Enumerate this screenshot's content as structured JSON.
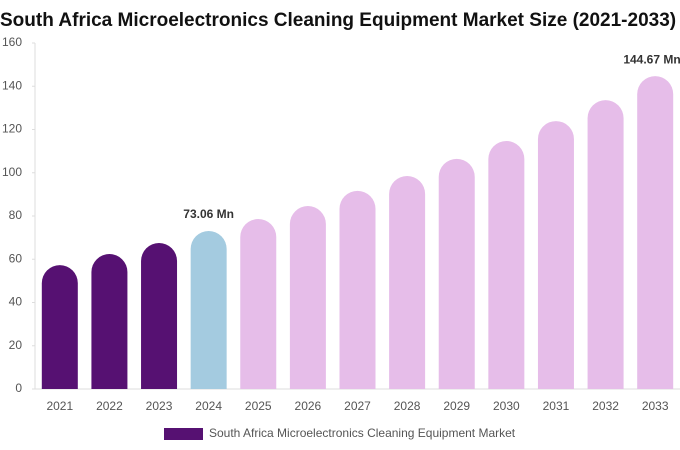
{
  "chart_data": {
    "type": "bar",
    "title": "South Africa Microelectronics Cleaning Equipment Market Size (2021-2033)",
    "categories": [
      "2021",
      "2022",
      "2023",
      "2024",
      "2025",
      "2026",
      "2027",
      "2028",
      "2029",
      "2030",
      "2031",
      "2032",
      "2033"
    ],
    "series": [
      {
        "name": "South Africa Microelectronics Cleaning Equipment Market",
        "color": "#561172",
        "values": [
          57.3,
          62.4,
          67.5,
          73.06,
          78.6,
          84.6,
          91.6,
          98.5,
          106.4,
          114.7,
          123.9,
          133.6,
          144.67
        ],
        "value_labels": [
          null,
          null,
          null,
          "73.06 Mn",
          null,
          null,
          null,
          null,
          null,
          null,
          null,
          null,
          "144.67 Mn"
        ],
        "colors": [
          "#561172",
          "#561172",
          "#561172",
          "#a4cbe0",
          "#e6bde9",
          "#e6bde9",
          "#e6bde9",
          "#e6bde9",
          "#e6bde9",
          "#e6bde9",
          "#e6bde9",
          "#e6bde9",
          "#e6bde9"
        ]
      }
    ],
    "ylim": [
      0,
      160
    ],
    "yticks": [
      0,
      20,
      40,
      60,
      80,
      100,
      120,
      140,
      160
    ],
    "grid": false,
    "legend": "bottom"
  }
}
